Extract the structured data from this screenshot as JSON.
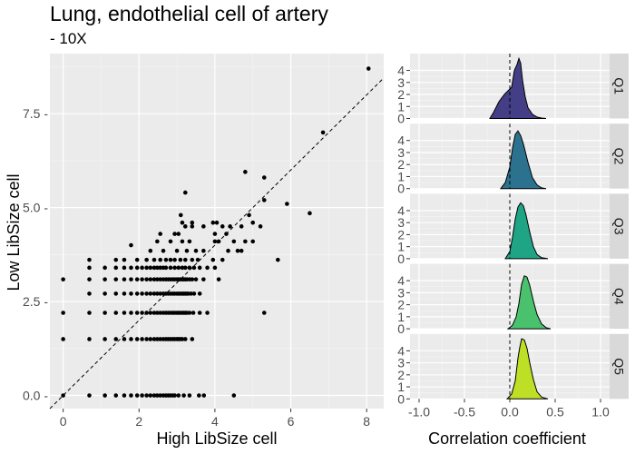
{
  "chart_data": [
    {
      "type": "scatter",
      "title": "Lung, endothelial cell of artery",
      "subtitle": "- 10X",
      "xlabel": "High LibSize cell",
      "ylabel": "Low LibSize cell",
      "xlim": [
        -0.35,
        8.45
      ],
      "ylim": [
        -0.35,
        9.1
      ],
      "x_ticks": [
        0,
        2,
        4,
        6,
        8
      ],
      "x_tick_labels": [
        "0",
        "2",
        "4",
        "6",
        "8"
      ],
      "y_ticks": [
        0,
        2.5,
        5,
        7.5
      ],
      "y_tick_labels": [
        "0.0 -",
        "2.5 -",
        "5.0 -",
        "7.5 -"
      ],
      "reference_line": "y = x (dashed)",
      "grid": true,
      "points": [
        {
          "x": 0,
          "y": 0
        },
        {
          "x": 0.69,
          "y": 0
        },
        {
          "x": 1.1,
          "y": 0
        },
        {
          "x": 1.39,
          "y": 0
        },
        {
          "x": 1.61,
          "y": 0
        },
        {
          "x": 1.79,
          "y": 0
        },
        {
          "x": 1.95,
          "y": 0
        },
        {
          "x": 2.08,
          "y": 0
        },
        {
          "x": 2.2,
          "y": 0
        },
        {
          "x": 2.3,
          "y": 0
        },
        {
          "x": 2.4,
          "y": 0
        },
        {
          "x": 2.48,
          "y": 0
        },
        {
          "x": 2.56,
          "y": 0
        },
        {
          "x": 2.64,
          "y": 0
        },
        {
          "x": 2.71,
          "y": 0
        },
        {
          "x": 2.77,
          "y": 0
        },
        {
          "x": 2.83,
          "y": 0
        },
        {
          "x": 2.89,
          "y": 0
        },
        {
          "x": 2.94,
          "y": 0
        },
        {
          "x": 3.04,
          "y": 0
        },
        {
          "x": 3.18,
          "y": 0
        },
        {
          "x": 3.33,
          "y": 0
        },
        {
          "x": 3.58,
          "y": 0
        },
        {
          "x": 3.71,
          "y": 0
        },
        {
          "x": 4.5,
          "y": 0
        },
        {
          "x": 0,
          "y": 1.5
        },
        {
          "x": 0.69,
          "y": 1.5
        },
        {
          "x": 1.1,
          "y": 1.5
        },
        {
          "x": 1.39,
          "y": 1.5
        },
        {
          "x": 1.61,
          "y": 1.5
        },
        {
          "x": 1.79,
          "y": 1.5
        },
        {
          "x": 1.95,
          "y": 1.5
        },
        {
          "x": 2.08,
          "y": 1.5
        },
        {
          "x": 2.2,
          "y": 1.5
        },
        {
          "x": 2.3,
          "y": 1.5
        },
        {
          "x": 2.4,
          "y": 1.5
        },
        {
          "x": 2.48,
          "y": 1.5
        },
        {
          "x": 2.56,
          "y": 1.5
        },
        {
          "x": 2.64,
          "y": 1.5
        },
        {
          "x": 2.71,
          "y": 1.5
        },
        {
          "x": 2.77,
          "y": 1.5
        },
        {
          "x": 2.83,
          "y": 1.5
        },
        {
          "x": 2.89,
          "y": 1.5
        },
        {
          "x": 2.94,
          "y": 1.5
        },
        {
          "x": 3.0,
          "y": 1.5
        },
        {
          "x": 3.04,
          "y": 1.5
        },
        {
          "x": 3.09,
          "y": 1.5
        },
        {
          "x": 3.14,
          "y": 1.5
        },
        {
          "x": 3.22,
          "y": 1.5
        },
        {
          "x": 3.4,
          "y": 1.5
        },
        {
          "x": 0,
          "y": 2.2
        },
        {
          "x": 0.69,
          "y": 2.2
        },
        {
          "x": 1.1,
          "y": 2.2
        },
        {
          "x": 1.39,
          "y": 2.2
        },
        {
          "x": 1.61,
          "y": 2.2
        },
        {
          "x": 1.79,
          "y": 2.2
        },
        {
          "x": 1.95,
          "y": 2.2
        },
        {
          "x": 2.08,
          "y": 2.2
        },
        {
          "x": 2.2,
          "y": 2.2
        },
        {
          "x": 2.3,
          "y": 2.2
        },
        {
          "x": 2.4,
          "y": 2.2
        },
        {
          "x": 2.48,
          "y": 2.2
        },
        {
          "x": 2.56,
          "y": 2.2
        },
        {
          "x": 2.64,
          "y": 2.2
        },
        {
          "x": 2.71,
          "y": 2.2
        },
        {
          "x": 2.77,
          "y": 2.2
        },
        {
          "x": 2.83,
          "y": 2.2
        },
        {
          "x": 2.89,
          "y": 2.2
        },
        {
          "x": 2.94,
          "y": 2.2
        },
        {
          "x": 3.0,
          "y": 2.2
        },
        {
          "x": 3.04,
          "y": 2.2
        },
        {
          "x": 3.09,
          "y": 2.2
        },
        {
          "x": 3.14,
          "y": 2.2
        },
        {
          "x": 3.18,
          "y": 2.2
        },
        {
          "x": 3.22,
          "y": 2.2
        },
        {
          "x": 3.26,
          "y": 2.2
        },
        {
          "x": 3.33,
          "y": 2.2
        },
        {
          "x": 3.43,
          "y": 2.2
        },
        {
          "x": 3.6,
          "y": 2.2
        },
        {
          "x": 3.8,
          "y": 2.2
        },
        {
          "x": 5.3,
          "y": 2.2
        },
        {
          "x": 0.69,
          "y": 2.71
        },
        {
          "x": 1.1,
          "y": 2.71
        },
        {
          "x": 1.39,
          "y": 2.71
        },
        {
          "x": 1.61,
          "y": 2.71
        },
        {
          "x": 1.79,
          "y": 2.71
        },
        {
          "x": 1.95,
          "y": 2.71
        },
        {
          "x": 2.08,
          "y": 2.71
        },
        {
          "x": 2.2,
          "y": 2.71
        },
        {
          "x": 2.3,
          "y": 2.71
        },
        {
          "x": 2.4,
          "y": 2.71
        },
        {
          "x": 2.48,
          "y": 2.71
        },
        {
          "x": 2.56,
          "y": 2.71
        },
        {
          "x": 2.64,
          "y": 2.71
        },
        {
          "x": 2.71,
          "y": 2.71
        },
        {
          "x": 2.77,
          "y": 2.71
        },
        {
          "x": 2.83,
          "y": 2.71
        },
        {
          "x": 2.89,
          "y": 2.71
        },
        {
          "x": 2.94,
          "y": 2.71
        },
        {
          "x": 3.0,
          "y": 2.71
        },
        {
          "x": 3.04,
          "y": 2.71
        },
        {
          "x": 3.09,
          "y": 2.71
        },
        {
          "x": 3.14,
          "y": 2.71
        },
        {
          "x": 3.18,
          "y": 2.71
        },
        {
          "x": 3.22,
          "y": 2.71
        },
        {
          "x": 3.26,
          "y": 2.71
        },
        {
          "x": 3.3,
          "y": 2.71
        },
        {
          "x": 3.37,
          "y": 2.71
        },
        {
          "x": 3.45,
          "y": 2.71
        },
        {
          "x": 3.6,
          "y": 2.71
        },
        {
          "x": 0,
          "y": 3.09
        },
        {
          "x": 0.69,
          "y": 3.09
        },
        {
          "x": 1.1,
          "y": 3.09
        },
        {
          "x": 1.39,
          "y": 3.09
        },
        {
          "x": 1.61,
          "y": 3.09
        },
        {
          "x": 1.79,
          "y": 3.09
        },
        {
          "x": 1.95,
          "y": 3.09
        },
        {
          "x": 2.08,
          "y": 3.09
        },
        {
          "x": 2.2,
          "y": 3.09
        },
        {
          "x": 2.3,
          "y": 3.09
        },
        {
          "x": 2.4,
          "y": 3.09
        },
        {
          "x": 2.48,
          "y": 3.09
        },
        {
          "x": 2.56,
          "y": 3.09
        },
        {
          "x": 2.64,
          "y": 3.09
        },
        {
          "x": 2.71,
          "y": 3.09
        },
        {
          "x": 2.77,
          "y": 3.09
        },
        {
          "x": 2.83,
          "y": 3.09
        },
        {
          "x": 2.89,
          "y": 3.09
        },
        {
          "x": 2.94,
          "y": 3.09
        },
        {
          "x": 3.0,
          "y": 3.09
        },
        {
          "x": 3.04,
          "y": 3.09
        },
        {
          "x": 3.09,
          "y": 3.09
        },
        {
          "x": 3.14,
          "y": 3.09
        },
        {
          "x": 3.18,
          "y": 3.09
        },
        {
          "x": 3.22,
          "y": 3.09
        },
        {
          "x": 3.26,
          "y": 3.09
        },
        {
          "x": 3.33,
          "y": 3.09
        },
        {
          "x": 3.4,
          "y": 3.09
        },
        {
          "x": 3.5,
          "y": 3.09
        },
        {
          "x": 3.7,
          "y": 3.09
        },
        {
          "x": 4.1,
          "y": 3.09
        },
        {
          "x": 0.69,
          "y": 3.4
        },
        {
          "x": 1.1,
          "y": 3.4
        },
        {
          "x": 1.39,
          "y": 3.4
        },
        {
          "x": 1.61,
          "y": 3.4
        },
        {
          "x": 1.79,
          "y": 3.4
        },
        {
          "x": 1.95,
          "y": 3.4
        },
        {
          "x": 2.08,
          "y": 3.4
        },
        {
          "x": 2.2,
          "y": 3.4
        },
        {
          "x": 2.3,
          "y": 3.4
        },
        {
          "x": 2.4,
          "y": 3.4
        },
        {
          "x": 2.48,
          "y": 3.4
        },
        {
          "x": 2.56,
          "y": 3.4
        },
        {
          "x": 2.64,
          "y": 3.4
        },
        {
          "x": 2.71,
          "y": 3.4
        },
        {
          "x": 2.83,
          "y": 3.4
        },
        {
          "x": 2.94,
          "y": 3.4
        },
        {
          "x": 3.04,
          "y": 3.4
        },
        {
          "x": 3.14,
          "y": 3.4
        },
        {
          "x": 3.22,
          "y": 3.4
        },
        {
          "x": 3.33,
          "y": 3.4
        },
        {
          "x": 3.45,
          "y": 3.4
        },
        {
          "x": 3.6,
          "y": 3.4
        },
        {
          "x": 3.8,
          "y": 3.4
        },
        {
          "x": 4.0,
          "y": 3.4
        },
        {
          "x": 0.69,
          "y": 3.61
        },
        {
          "x": 1.39,
          "y": 3.61
        },
        {
          "x": 1.61,
          "y": 3.61
        },
        {
          "x": 1.95,
          "y": 3.61
        },
        {
          "x": 2.2,
          "y": 3.61
        },
        {
          "x": 2.4,
          "y": 3.61
        },
        {
          "x": 2.56,
          "y": 3.61
        },
        {
          "x": 2.71,
          "y": 3.61
        },
        {
          "x": 2.83,
          "y": 3.61
        },
        {
          "x": 2.94,
          "y": 3.61
        },
        {
          "x": 3.09,
          "y": 3.61
        },
        {
          "x": 3.22,
          "y": 3.61
        },
        {
          "x": 3.4,
          "y": 3.61
        },
        {
          "x": 3.55,
          "y": 3.61
        },
        {
          "x": 3.95,
          "y": 3.61
        },
        {
          "x": 4.2,
          "y": 3.61
        },
        {
          "x": 5.66,
          "y": 3.61
        },
        {
          "x": 1.79,
          "y": 4.0
        },
        {
          "x": 2.3,
          "y": 3.85
        },
        {
          "x": 2.64,
          "y": 3.85
        },
        {
          "x": 3.0,
          "y": 3.85
        },
        {
          "x": 3.26,
          "y": 3.85
        },
        {
          "x": 3.5,
          "y": 3.85
        },
        {
          "x": 3.7,
          "y": 3.85
        },
        {
          "x": 4.35,
          "y": 3.85
        },
        {
          "x": 4.6,
          "y": 3.85
        },
        {
          "x": 4.7,
          "y": 3.85
        },
        {
          "x": 2.48,
          "y": 4.1
        },
        {
          "x": 2.83,
          "y": 4.1
        },
        {
          "x": 3.14,
          "y": 4.1
        },
        {
          "x": 3.33,
          "y": 4.1
        },
        {
          "x": 4.0,
          "y": 4.1
        },
        {
          "x": 4.1,
          "y": 4.1
        },
        {
          "x": 4.5,
          "y": 4.1
        },
        {
          "x": 4.8,
          "y": 4.1
        },
        {
          "x": 5.0,
          "y": 4.1
        },
        {
          "x": 2.56,
          "y": 4.3
        },
        {
          "x": 2.94,
          "y": 4.3
        },
        {
          "x": 3.04,
          "y": 4.3
        },
        {
          "x": 4.0,
          "y": 4.3
        },
        {
          "x": 4.3,
          "y": 4.3
        },
        {
          "x": 3.22,
          "y": 4.5
        },
        {
          "x": 3.4,
          "y": 4.5
        },
        {
          "x": 3.7,
          "y": 4.5
        },
        {
          "x": 4.2,
          "y": 4.5
        },
        {
          "x": 4.4,
          "y": 4.5
        },
        {
          "x": 4.7,
          "y": 4.5
        },
        {
          "x": 5.2,
          "y": 4.5
        },
        {
          "x": 3.14,
          "y": 4.6
        },
        {
          "x": 3.4,
          "y": 4.6
        },
        {
          "x": 3.95,
          "y": 4.6
        },
        {
          "x": 4.05,
          "y": 4.6
        },
        {
          "x": 5.0,
          "y": 4.6
        },
        {
          "x": 3.1,
          "y": 4.8
        },
        {
          "x": 4.9,
          "y": 4.8
        },
        {
          "x": 6.5,
          "y": 4.85
        },
        {
          "x": 5.9,
          "y": 5.1
        },
        {
          "x": 5.3,
          "y": 5.2
        },
        {
          "x": 3.22,
          "y": 5.4
        },
        {
          "x": 4.8,
          "y": 5.95
        },
        {
          "x": 5.3,
          "y": 5.8
        },
        {
          "x": 6.85,
          "y": 7.0
        },
        {
          "x": 8.05,
          "y": 8.7
        }
      ]
    },
    {
      "type": "area",
      "xlabel": "Correlation coefficient",
      "xlim": [
        -1.1,
        1.1
      ],
      "x_ticks": [
        -1.0,
        -0.5,
        0.0,
        0.5,
        1.0
      ],
      "x_tick_labels": [
        "-1.0",
        "-0.5",
        "0.0",
        "0.5",
        "1.0"
      ],
      "y_ticks": [
        0,
        1,
        2,
        3,
        4
      ],
      "y_tick_labels": [
        "0",
        "1",
        "2",
        "3",
        "4"
      ],
      "ylim": [
        0,
        5.4
      ],
      "reference_line": "x = 0 (dashed)",
      "series": [
        {
          "name": "Q1",
          "color": "#433e85",
          "x": [
            -0.22,
            -0.18,
            -0.12,
            -0.06,
            -0.02,
            0.02,
            0.05,
            0.08,
            0.1,
            0.12,
            0.14,
            0.17,
            0.2,
            0.25,
            0.3,
            0.35,
            0.4
          ],
          "y": [
            0.0,
            0.5,
            1.4,
            2.0,
            2.3,
            2.6,
            4.0,
            4.5,
            5.0,
            4.6,
            3.2,
            1.8,
            0.9,
            0.35,
            0.12,
            0.04,
            0.0
          ]
        },
        {
          "name": "Q2",
          "color": "#2c728e",
          "x": [
            -0.1,
            -0.05,
            0.0,
            0.03,
            0.06,
            0.09,
            0.12,
            0.15,
            0.2,
            0.25,
            0.3,
            0.35,
            0.4
          ],
          "y": [
            0.0,
            0.5,
            1.8,
            3.4,
            4.5,
            4.8,
            4.4,
            3.7,
            2.2,
            0.9,
            0.3,
            0.06,
            0.0
          ]
        },
        {
          "name": "Q3",
          "color": "#20a486",
          "x": [
            -0.05,
            0.0,
            0.03,
            0.06,
            0.09,
            0.12,
            0.15,
            0.18,
            0.22,
            0.26,
            0.3,
            0.35,
            0.42
          ],
          "y": [
            0.0,
            0.6,
            1.8,
            3.3,
            4.3,
            4.65,
            4.4,
            3.6,
            2.2,
            1.0,
            0.35,
            0.08,
            0.0
          ]
        },
        {
          "name": "Q4",
          "color": "#4ac16d",
          "x": [
            -0.02,
            0.03,
            0.07,
            0.1,
            0.13,
            0.16,
            0.19,
            0.22,
            0.26,
            0.3,
            0.35,
            0.4,
            0.45
          ],
          "y": [
            0.0,
            0.3,
            1.0,
            2.1,
            3.7,
            4.4,
            4.3,
            3.6,
            2.3,
            1.2,
            0.4,
            0.1,
            0.0
          ]
        },
        {
          "name": "Q5",
          "color": "#bddf26",
          "x": [
            -0.03,
            0.02,
            0.06,
            0.09,
            0.11,
            0.13,
            0.16,
            0.19,
            0.22,
            0.26,
            0.3,
            0.35,
            0.42
          ],
          "y": [
            0.0,
            0.4,
            1.5,
            3.4,
            4.3,
            5.0,
            4.9,
            4.2,
            3.0,
            1.6,
            0.6,
            0.15,
            0.0
          ]
        }
      ]
    }
  ]
}
